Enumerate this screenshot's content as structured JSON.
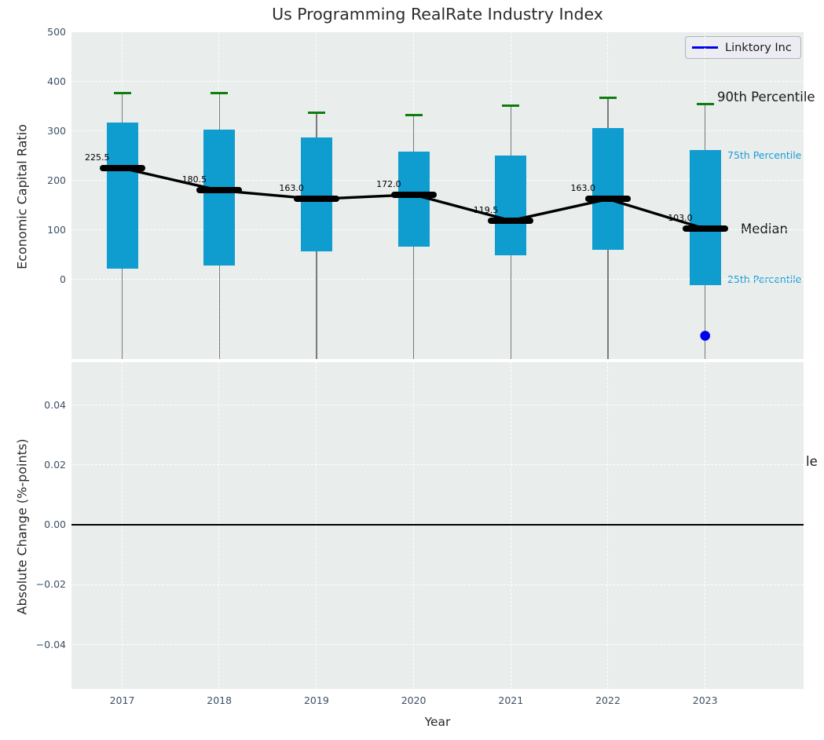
{
  "title": "Us Programming RealRate Industry Index",
  "xlabel": "Year",
  "legend": {
    "label": "Linktory Inc",
    "line_color": "#0000ee"
  },
  "colors": {
    "box_fill": "#0f9dd0",
    "whisker": "#7a7a7a",
    "cap_green": "#0e7d0e",
    "median_black": "#000000",
    "percentile_blue": "#1a9cd8",
    "axes_bg": "#e9edec",
    "tick_label": "#3c5064",
    "company_blue": "#0000ee"
  },
  "top_chart": {
    "ylabel": "Economic Capital Ratio",
    "ytick_labels": [
      "0",
      "100",
      "200",
      "300",
      "400",
      "500"
    ],
    "ytick_values": [
      0,
      100,
      200,
      300,
      400,
      500
    ],
    "ylim": [
      -160,
      500
    ],
    "annotations": {
      "p90": "90th Percentile",
      "p75": "75th Percentile",
      "median": "Median",
      "p25": "25th Percentile"
    }
  },
  "bottom_chart": {
    "ylabel": "Absolute Change (%-points)",
    "ytick_labels": [
      "0.04",
      "0.02",
      "0.00",
      "−0.02",
      "−0.04"
    ],
    "ytick_values": [
      0.04,
      0.02,
      0.0,
      -0.02,
      -0.04
    ],
    "ylim": [
      -0.0548,
      0.0543
    ],
    "zero_line_value": 0.0,
    "clipped_label": "le"
  },
  "chart_data": {
    "type": "boxplot",
    "title": "Us Programming RealRate Industry Index",
    "xlabel": "Year",
    "ylabel": "Economic Capital Ratio",
    "categories": [
      2017,
      2018,
      2019,
      2020,
      2021,
      2022,
      2023
    ],
    "boxes": [
      {
        "year": 2017,
        "p90": 377,
        "q3": 317,
        "median": 225.5,
        "q1": 22,
        "p10_below_axis": true,
        "median_label": "225.5"
      },
      {
        "year": 2018,
        "p90": 377,
        "q3": 304,
        "median": 180.5,
        "q1": 28,
        "p10_below_axis": true,
        "median_label": "180.5"
      },
      {
        "year": 2019,
        "p90": 338,
        "q3": 288,
        "median": 163.0,
        "q1": 57,
        "p10_below_axis": true,
        "median_label": "163.0"
      },
      {
        "year": 2020,
        "p90": 332,
        "q3": 259,
        "median": 172.0,
        "q1": 67,
        "p10_below_axis": true,
        "median_label": "172.0"
      },
      {
        "year": 2021,
        "p90": 351,
        "q3": 251,
        "median": 119.5,
        "q1": 49,
        "p10_below_axis": true,
        "median_label": "119.5"
      },
      {
        "year": 2022,
        "p90": 368,
        "q3": 307,
        "median": 163.0,
        "q1": 61,
        "p10_below_axis": true,
        "median_label": "163.0"
      },
      {
        "year": 2023,
        "p90": 355,
        "q3": 262,
        "median": 103.0,
        "q1": -11,
        "p10_below_axis": true,
        "median_label": "103.0"
      }
    ],
    "median_trend": [
      225.5,
      180.5,
      163.0,
      172.0,
      119.5,
      163.0,
      103.0
    ],
    "company_series": {
      "name": "Linktory Inc",
      "points": [
        {
          "year": 2023,
          "value": -113
        }
      ]
    },
    "bottom_subplot": {
      "type": "line",
      "ylabel": "Absolute Change (%-points)",
      "ytick_values": [
        0.04,
        0.02,
        0.0,
        -0.02,
        -0.04
      ],
      "ylim": [
        -0.0548,
        0.0543
      ],
      "zero_line": 0.0,
      "values": []
    },
    "layout_hints": {
      "grid": "white dashed",
      "legend_position": "upper right",
      "subplots": 2
    }
  }
}
